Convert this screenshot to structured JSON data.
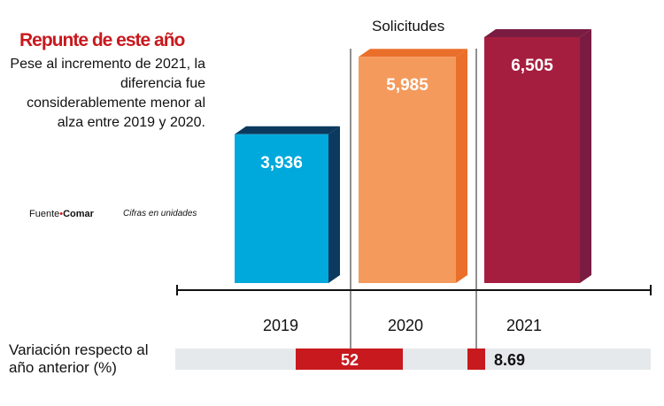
{
  "headline": "Repunte de este año",
  "description": "Pese al incremento de 2021, la diferencia fue considerablemente menor al alza entre 2019 y 2020.",
  "source_label": "Fuente",
  "source_name": "Comar",
  "units_note": "Cifras en unidades",
  "chart_data": [
    {
      "type": "bar",
      "title": "Solicitudes",
      "categories": [
        "2019",
        "2020",
        "2021"
      ],
      "values": [
        3936,
        5985,
        6505
      ],
      "value_labels": [
        "3,936",
        "5,985",
        "6,505"
      ],
      "colors": [
        "#00a9dc",
        "#f49a5c",
        "#a61e3f"
      ],
      "side_colors": [
        "#0b3a5e",
        "#ea6f2a",
        "#7a1c42"
      ],
      "ylim": [
        0,
        6600
      ]
    },
    {
      "type": "bar",
      "title": "Variación respecto al año anterior  (%)",
      "categories": [
        "2020",
        "2021"
      ],
      "values": [
        52,
        8.69
      ],
      "value_labels": [
        "52",
        "8.69"
      ],
      "colors": [
        "#c8191e"
      ]
    }
  ]
}
